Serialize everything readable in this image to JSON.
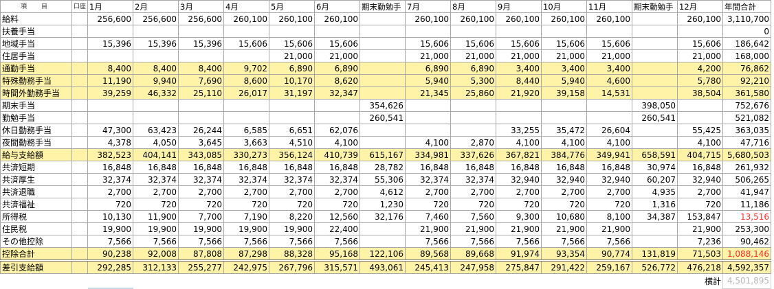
{
  "header": [
    "項　目",
    "口座",
    "1月",
    "2月",
    "3月",
    "4月",
    "5月",
    "6月",
    "期末勤勉手",
    "7月",
    "8月",
    "9月",
    "10月",
    "11月",
    "期末勤勉手",
    "12月",
    "年間合計"
  ],
  "rows": [
    {
      "label": "給料",
      "hl": false,
      "cells": [
        "",
        "256,600",
        "256,600",
        "256,600",
        "260,100",
        "260,100",
        "260,100",
        "",
        "260,100",
        "260,100",
        "260,100",
        "260,100",
        "260,100",
        "",
        "260,100",
        "3,110,700"
      ]
    },
    {
      "label": "扶養手当",
      "hl": false,
      "cells": [
        "",
        "",
        "",
        "",
        "",
        "",
        "",
        "",
        "",
        "",
        "",
        "",
        "",
        "",
        "",
        "0"
      ]
    },
    {
      "label": "地域手当",
      "hl": false,
      "cells": [
        "",
        "15,396",
        "15,396",
        "15,396",
        "15,606",
        "15,606",
        "15,606",
        "",
        "15,606",
        "15,606",
        "15,606",
        "15,606",
        "15,606",
        "",
        "15,606",
        "186,642"
      ]
    },
    {
      "label": "住居手当",
      "hl": false,
      "cells": [
        "",
        "",
        "",
        "",
        "",
        "21,000",
        "21,000",
        "",
        "21,000",
        "21,000",
        "21,000",
        "21,000",
        "21,000",
        "",
        "21,000",
        "168,000"
      ]
    },
    {
      "label": "通勤手当",
      "hl": true,
      "cells": [
        "",
        "8,400",
        "8,400",
        "8,400",
        "9,702",
        "6,890",
        "6,890",
        "",
        "6,890",
        "6,890",
        "3,400",
        "3,400",
        "3,400",
        "",
        "4,200",
        "76,862"
      ]
    },
    {
      "label": "特殊勤務手当",
      "hl": true,
      "cells": [
        "",
        "11,190",
        "9,940",
        "7,690",
        "8,600",
        "10,170",
        "8,620",
        "",
        "5,940",
        "5,300",
        "8,440",
        "5,940",
        "4,600",
        "",
        "5,780",
        "92,210"
      ]
    },
    {
      "label": "時間外勤務手当",
      "hl": true,
      "cells": [
        "",
        "39,259",
        "46,332",
        "25,110",
        "26,017",
        "31,197",
        "32,347",
        "",
        "21,345",
        "25,860",
        "21,920",
        "39,158",
        "14,531",
        "",
        "38,504",
        "361,580"
      ]
    },
    {
      "label": "期末手当",
      "hl": false,
      "cells": [
        "",
        "",
        "",
        "",
        "",
        "",
        "",
        "354,626",
        "",
        "",
        "",
        "",
        "",
        "398,050",
        "",
        "752,676"
      ]
    },
    {
      "label": "勤勉手当",
      "hl": false,
      "cells": [
        "",
        "",
        "",
        "",
        "",
        "",
        "",
        "260,541",
        "",
        "",
        "",
        "",
        "",
        "260,541",
        "",
        "521,082"
      ]
    },
    {
      "label": "休日勤務手当",
      "hl": false,
      "cells": [
        "",
        "47,300",
        "63,423",
        "26,244",
        "6,585",
        "6,651",
        "62,076",
        "",
        "",
        "",
        "33,255",
        "35,472",
        "26,604",
        "",
        "55,425",
        "363,035"
      ]
    },
    {
      "label": "夜間勤務手当",
      "hl": false,
      "cells": [
        "",
        "4,378",
        "4,050",
        "3,645",
        "3,663",
        "4,510",
        "4,100",
        "",
        "4,100",
        "2,870",
        "4,100",
        "4,100",
        "4,100",
        "",
        "4,100",
        "47,716"
      ]
    },
    {
      "label": "給与支給額",
      "hl": true,
      "cells": [
        "",
        "382,523",
        "404,141",
        "343,085",
        "330,273",
        "356,124",
        "410,739",
        "615,167",
        "334,981",
        "337,626",
        "367,821",
        "384,776",
        "349,941",
        "658,591",
        "404,715",
        "5,680,503"
      ]
    },
    {
      "label": "共済短期",
      "hl": false,
      "cells": [
        "",
        "16,848",
        "16,848",
        "16,848",
        "16,848",
        "16,848",
        "16,848",
        "28,782",
        "16,848",
        "16,848",
        "16,848",
        "16,848",
        "16,848",
        "30,974",
        "16,848",
        "261,932"
      ]
    },
    {
      "label": "共済厚生",
      "hl": false,
      "cells": [
        "",
        "32,374",
        "32,374",
        "32,374",
        "32,374",
        "32,374",
        "32,374",
        "55,306",
        "32,374",
        "32,374",
        "32,940",
        "32,940",
        "32,940",
        "60,207",
        "32,940",
        "506,265"
      ]
    },
    {
      "label": "共済退職",
      "hl": false,
      "cells": [
        "",
        "2,700",
        "2,700",
        "2,700",
        "2,700",
        "2,700",
        "2,700",
        "4,612",
        "2,700",
        "2,700",
        "2,700",
        "2,700",
        "2,700",
        "4,935",
        "2,700",
        "41,947"
      ]
    },
    {
      "label": "共済福祉",
      "hl": false,
      "cells": [
        "",
        "720",
        "720",
        "720",
        "720",
        "720",
        "720",
        "1,230",
        "720",
        "720",
        "720",
        "720",
        "720",
        "1,316",
        "720",
        "11,186"
      ]
    },
    {
      "label": "所得税",
      "hl": false,
      "cells": [
        "",
        "10,130",
        "11,900",
        "7,700",
        "7,190",
        "8,220",
        "12,560",
        "32,176",
        "7,460",
        "7,560",
        "9,300",
        "10,680",
        "8,100",
        "34,387",
        "153,847",
        "13,516"
      ]
    },
    {
      "label": "住民税",
      "hl": false,
      "cells": [
        "",
        "19,900",
        "19,900",
        "19,900",
        "19,900",
        "19,900",
        "22,400",
        "",
        "21,900",
        "21,900",
        "21,900",
        "21,900",
        "21,900",
        "",
        "21,900",
        "253,300"
      ]
    },
    {
      "label": "その他控除",
      "hl": false,
      "cells": [
        "",
        "7,566",
        "7,566",
        "7,566",
        "7,566",
        "7,566",
        "7,566",
        "",
        "7,566",
        "7,566",
        "7,566",
        "7,566",
        "7,566",
        "",
        "7,236",
        "90,462"
      ]
    },
    {
      "label": "控除合計",
      "hl": true,
      "cells": [
        "",
        "90,238",
        "92,008",
        "87,808",
        "87,298",
        "88,328",
        "95,168",
        "122,106",
        "89,568",
        "89,668",
        "91,974",
        "93,354",
        "90,774",
        "131,819",
        "71,503",
        "1,088,146"
      ]
    },
    {
      "label": "差引支給額",
      "hl": true,
      "cells": [
        "",
        "292,285",
        "312,133",
        "255,277",
        "242,975",
        "267,796",
        "315,571",
        "493,061",
        "245,413",
        "247,958",
        "275,847",
        "291,422",
        "259,167",
        "526,772",
        "476,218",
        "4,592,357"
      ]
    }
  ],
  "negative_color": "#ff2a2a",
  "highlight_color": "#fff3a8",
  "negatives": [
    {
      "row": 16,
      "col": 15
    },
    {
      "row": 19,
      "col": 15
    }
  ],
  "footer": {
    "label": "横計",
    "value": "4,501,895"
  }
}
